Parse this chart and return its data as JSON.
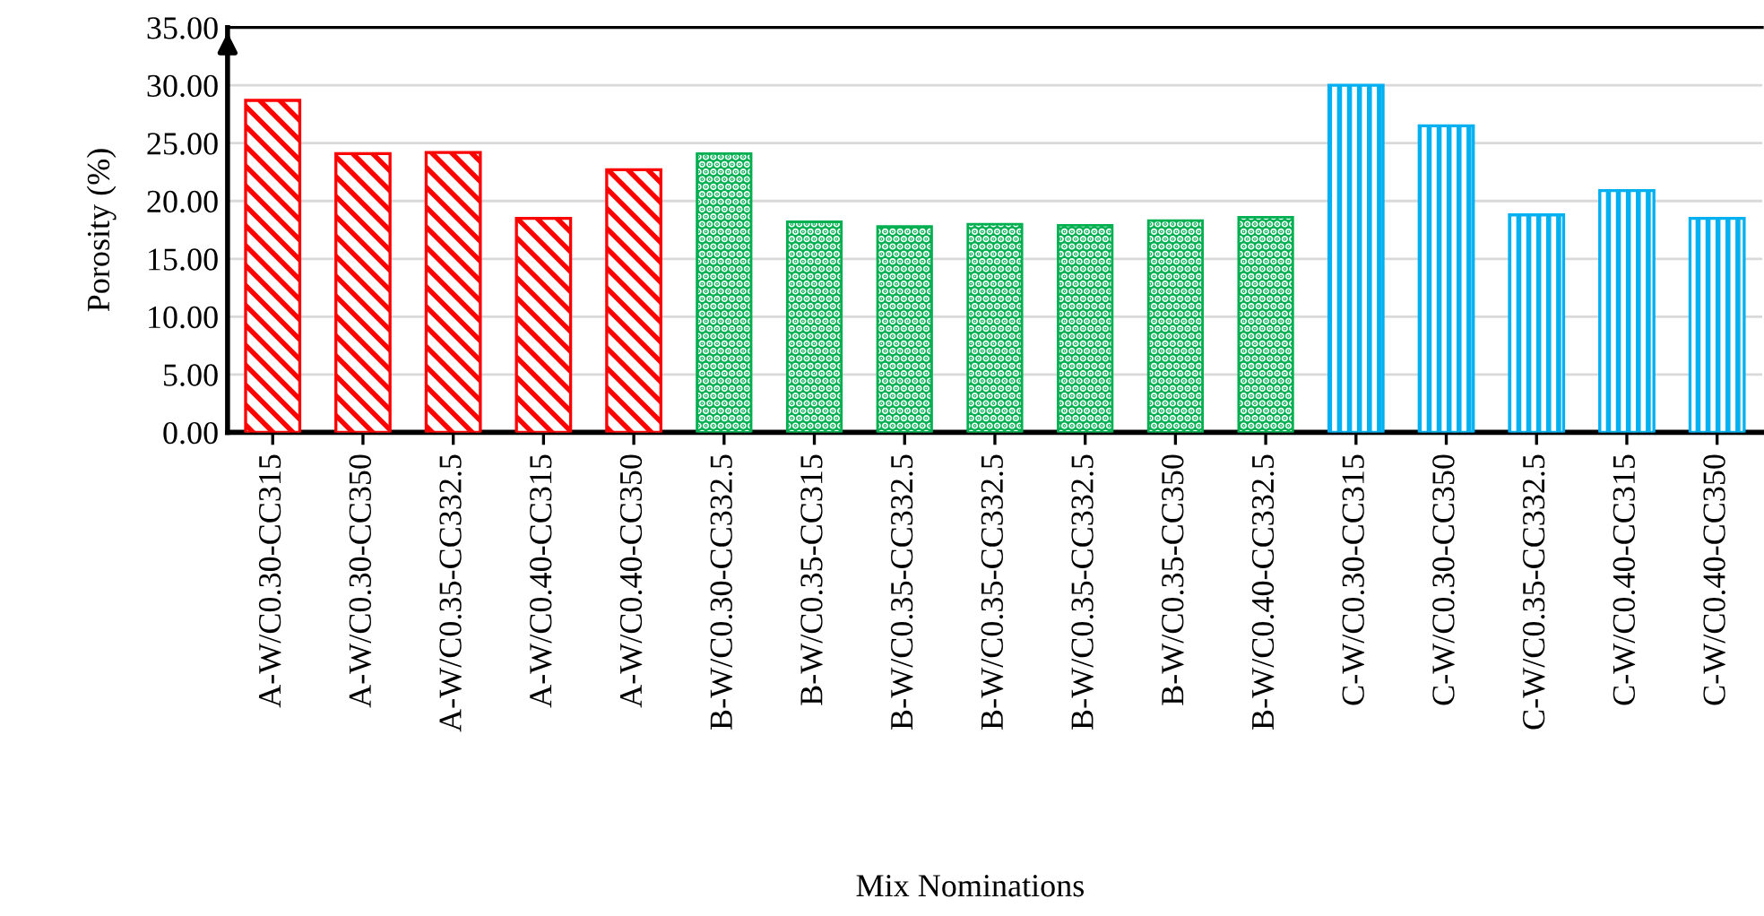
{
  "chart_data": {
    "type": "bar",
    "xlabel": "Mix Nominations",
    "ylabel": "Porosity (%)",
    "categories": [
      "A-W/C0.30-CC315",
      "A-W/C0.30-CC350",
      "A-W/C0.35-CC332.5",
      "A-W/C0.40-CC315",
      "A-W/C0.40-CC350",
      "B-W/C0.30-CC332.5",
      "B-W/C0.35-CC315",
      "B-W/C0.35-CC332.5",
      "B-W/C0.35-CC332.5",
      "B-W/C0.35-CC332.5",
      "B-W/C0.35-CC350",
      "B-W/C0.40-CC332.5",
      "C-W/C0.30-CC315",
      "C-W/C0.30-CC350",
      "C-W/C0.35-CC332.5",
      "C-W/C0.40-CC315",
      "C-W/C0.40-CC350"
    ],
    "values": [
      28.7,
      24.1,
      24.2,
      18.5,
      22.7,
      24.1,
      18.2,
      17.8,
      18.0,
      17.9,
      18.3,
      18.6,
      30.0,
      26.5,
      18.8,
      20.9,
      18.5
    ],
    "colors": [
      "#ff0000",
      "#ff0000",
      "#ff0000",
      "#ff0000",
      "#ff0000",
      "#00b050",
      "#00b050",
      "#00b050",
      "#00b050",
      "#00b050",
      "#00b050",
      "#00b050",
      "#00b0f0",
      "#00b0f0",
      "#00b0f0",
      "#00b0f0",
      "#00b0f0"
    ],
    "ylim": [
      0,
      35
    ],
    "yticks": [
      {
        "value": 0,
        "label": "0.00"
      },
      {
        "value": 5,
        "label": "5.00"
      },
      {
        "value": 10,
        "label": "10.00"
      },
      {
        "value": 15,
        "label": "15.00"
      },
      {
        "value": 20,
        "label": "20.00"
      },
      {
        "value": 25,
        "label": "25.00"
      },
      {
        "value": 30,
        "label": "30.00"
      },
      {
        "value": 35,
        "label": "35.00"
      }
    ],
    "grid": "y",
    "legend": false
  }
}
